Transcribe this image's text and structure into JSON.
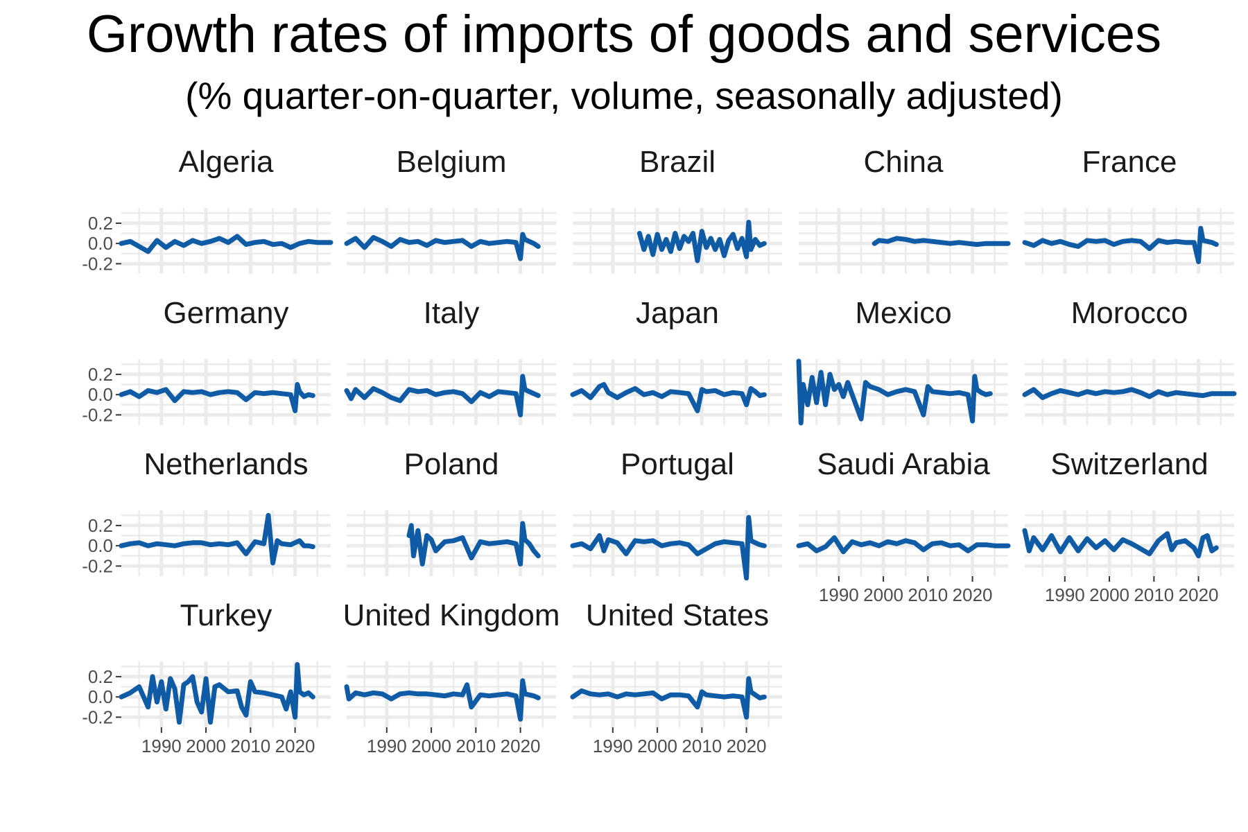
{
  "title": "Growth rates of imports of goods and services",
  "subtitle": "(% quarter-on-quarter, volume, seasonally adjusted)",
  "chart_data": {
    "type": "line",
    "layout": "facet_wrap",
    "ncol": 5,
    "line_color": "#0f5ba6",
    "grid": true,
    "background": "#ffffff",
    "grid_color": "#ebebeb",
    "xlim": [
      1981,
      2028
    ],
    "x_ticks": [
      1990,
      2000,
      2010,
      2020
    ],
    "x_tick_labels": [
      "1990",
      "2000",
      "2010",
      "2020"
    ],
    "ylim": [
      -0.3,
      0.35
    ],
    "y_ticks": [
      0.2,
      0.0,
      -0.2
    ],
    "y_tick_labels": [
      "0.2",
      "0.0",
      "-0.2"
    ],
    "xlabel": "",
    "ylabel": "",
    "panels": [
      {
        "name": "Algeria",
        "x": [
          1981,
          1983,
          1985,
          1987,
          1989,
          1991,
          1993,
          1995,
          1997,
          1999,
          2001,
          2003,
          2005,
          2007,
          2009,
          2011,
          2013,
          2015,
          2017,
          2019,
          2021,
          2023,
          2025,
          2028
        ],
        "y": [
          0.0,
          0.02,
          -0.03,
          -0.08,
          0.03,
          -0.04,
          0.02,
          -0.02,
          0.03,
          0.0,
          0.02,
          0.05,
          0.01,
          0.07,
          -0.01,
          0.01,
          0.02,
          -0.01,
          0.0,
          -0.04,
          0.0,
          0.02,
          0.01,
          0.01
        ]
      },
      {
        "name": "Belgium",
        "x": [
          1981,
          1983,
          1985,
          1987,
          1989,
          1991,
          1993,
          1995,
          1997,
          1999,
          2001,
          2003,
          2005,
          2007,
          2009,
          2011,
          2013,
          2015,
          2017,
          2019,
          2020,
          2020.5,
          2021,
          2022,
          2023,
          2024
        ],
        "y": [
          0.0,
          0.05,
          -0.04,
          0.06,
          0.02,
          -0.03,
          0.04,
          0.01,
          0.02,
          -0.02,
          0.03,
          0.01,
          0.02,
          0.03,
          -0.03,
          0.02,
          0.0,
          0.01,
          0.02,
          0.01,
          -0.15,
          0.09,
          0.04,
          0.02,
          0.0,
          -0.03
        ]
      },
      {
        "name": "Brazil",
        "x": [
          1996,
          1997,
          1998,
          1999,
          2000,
          2001,
          2002,
          2003,
          2004,
          2005,
          2006,
          2007,
          2008,
          2009,
          2010,
          2011,
          2012,
          2013,
          2014,
          2015,
          2016,
          2017,
          2018,
          2019,
          2020,
          2020.5,
          2021,
          2022,
          2023,
          2024
        ],
        "y": [
          0.1,
          -0.06,
          0.07,
          -0.11,
          0.09,
          -0.06,
          0.04,
          -0.08,
          0.1,
          -0.05,
          0.07,
          0.02,
          0.1,
          -0.17,
          0.12,
          -0.04,
          0.05,
          -0.06,
          0.04,
          -0.12,
          0.03,
          0.09,
          -0.05,
          0.05,
          -0.13,
          0.21,
          -0.06,
          0.04,
          -0.02,
          0.0
        ]
      },
      {
        "name": "China",
        "x": [
          1998,
          1999,
          2001,
          2003,
          2005,
          2007,
          2009,
          2011,
          2013,
          2015,
          2017,
          2019,
          2021,
          2023,
          2025,
          2028
        ],
        "y": [
          0.0,
          0.03,
          0.02,
          0.05,
          0.04,
          0.02,
          0.03,
          0.02,
          0.01,
          0.0,
          0.01,
          0.0,
          -0.01,
          0.0,
          0.0,
          0.0
        ]
      },
      {
        "name": "France",
        "x": [
          1981,
          1983,
          1985,
          1987,
          1989,
          1991,
          1993,
          1995,
          1997,
          1999,
          2001,
          2003,
          2005,
          2007,
          2009,
          2011,
          2013,
          2015,
          2017,
          2019,
          2020,
          2020.5,
          2021,
          2022,
          2023,
          2024
        ],
        "y": [
          0.01,
          -0.02,
          0.03,
          0.0,
          0.02,
          -0.01,
          -0.03,
          0.03,
          0.02,
          0.03,
          -0.01,
          0.02,
          0.03,
          0.02,
          -0.05,
          0.03,
          0.01,
          0.02,
          0.01,
          0.01,
          -0.18,
          0.15,
          0.03,
          0.02,
          0.01,
          -0.01
        ]
      },
      {
        "name": "Germany",
        "x": [
          1981,
          1983,
          1985,
          1987,
          1989,
          1991,
          1993,
          1995,
          1997,
          1999,
          2001,
          2003,
          2005,
          2007,
          2009,
          2011,
          2013,
          2015,
          2017,
          2019,
          2020,
          2020.5,
          2021,
          2022,
          2023,
          2024
        ],
        "y": [
          0.0,
          0.03,
          -0.02,
          0.04,
          0.02,
          0.05,
          -0.06,
          0.03,
          0.02,
          0.03,
          0.0,
          0.02,
          0.03,
          0.02,
          -0.05,
          0.02,
          0.01,
          0.02,
          0.01,
          0.0,
          -0.16,
          0.1,
          0.03,
          -0.02,
          0.0,
          -0.01
        ]
      },
      {
        "name": "Italy",
        "x": [
          1981,
          1982,
          1983,
          1985,
          1987,
          1989,
          1991,
          1993,
          1995,
          1997,
          1999,
          2001,
          2003,
          2005,
          2007,
          2009,
          2011,
          2013,
          2015,
          2017,
          2019,
          2020,
          2020.5,
          2021,
          2022,
          2023,
          2024
        ],
        "y": [
          0.04,
          -0.04,
          0.05,
          -0.03,
          0.06,
          0.02,
          -0.03,
          -0.06,
          0.05,
          0.03,
          0.04,
          0.0,
          0.02,
          0.03,
          0.01,
          -0.07,
          0.02,
          -0.02,
          0.03,
          0.02,
          0.01,
          -0.2,
          0.18,
          0.05,
          0.03,
          0.01,
          -0.01
        ]
      },
      {
        "name": "Japan",
        "x": [
          1981,
          1983,
          1985,
          1987,
          1988,
          1989,
          1991,
          1993,
          1995,
          1997,
          1999,
          2001,
          2003,
          2005,
          2007,
          2009,
          2010,
          2011,
          2013,
          2015,
          2017,
          2019,
          2020,
          2021,
          2022,
          2023,
          2024
        ],
        "y": [
          0.0,
          0.04,
          -0.03,
          0.08,
          0.1,
          0.02,
          -0.03,
          0.02,
          0.06,
          0.0,
          0.02,
          -0.02,
          0.03,
          0.02,
          0.01,
          -0.16,
          0.05,
          0.03,
          0.04,
          0.0,
          0.02,
          0.01,
          -0.1,
          0.06,
          0.03,
          -0.01,
          0.0
        ]
      },
      {
        "name": "Mexico",
        "x": [
          1981,
          1981.5,
          1982,
          1983,
          1984,
          1985,
          1986,
          1987,
          1988,
          1989,
          1990,
          1991,
          1992,
          1993,
          1995,
          1996,
          1997,
          1999,
          2001,
          2003,
          2005,
          2007,
          2009,
          2010,
          2011,
          2013,
          2015,
          2017,
          2019,
          2020,
          2020.5,
          2021,
          2022,
          2023,
          2024
        ],
        "y": [
          0.33,
          -0.28,
          0.1,
          -0.1,
          0.17,
          -0.08,
          0.22,
          -0.1,
          0.2,
          0.05,
          0.1,
          -0.02,
          0.12,
          0.0,
          -0.24,
          0.12,
          0.08,
          0.05,
          0.0,
          0.03,
          0.05,
          0.03,
          -0.2,
          0.08,
          0.03,
          0.02,
          0.01,
          0.02,
          0.0,
          -0.26,
          0.18,
          0.05,
          0.02,
          0.0,
          0.01
        ]
      },
      {
        "name": "Morocco",
        "x": [
          1981,
          1983,
          1985,
          1987,
          1989,
          1991,
          1993,
          1995,
          1997,
          1999,
          2001,
          2003,
          2005,
          2007,
          2009,
          2011,
          2013,
          2015,
          2017,
          2019,
          2021,
          2023,
          2025,
          2028
        ],
        "y": [
          0.0,
          0.05,
          -0.03,
          0.01,
          0.04,
          0.02,
          0.0,
          0.03,
          0.01,
          0.03,
          0.02,
          0.03,
          0.05,
          0.02,
          -0.02,
          0.03,
          0.0,
          0.02,
          0.01,
          0.0,
          -0.01,
          0.01,
          0.01,
          0.01
        ]
      },
      {
        "name": "Netherlands",
        "x": [
          1981,
          1983,
          1985,
          1987,
          1989,
          1991,
          1993,
          1995,
          1997,
          1999,
          2001,
          2003,
          2005,
          2007,
          2009,
          2011,
          2013,
          2014,
          2015,
          2016,
          2017,
          2019,
          2021,
          2022,
          2023,
          2024
        ],
        "y": [
          0.0,
          0.02,
          0.03,
          0.0,
          0.02,
          0.01,
          0.0,
          0.02,
          0.03,
          0.03,
          0.01,
          0.02,
          0.01,
          0.03,
          -0.08,
          0.04,
          0.02,
          0.3,
          -0.17,
          0.05,
          0.02,
          0.01,
          0.05,
          0.0,
          0.0,
          -0.01
        ]
      },
      {
        "name": "Poland",
        "x": [
          1995,
          1995.5,
          1996,
          1997,
          1998,
          1999,
          2000,
          2001,
          2003,
          2005,
          2007,
          2009,
          2011,
          2013,
          2015,
          2017,
          2019,
          2020,
          2020.5,
          2021,
          2022,
          2023,
          2024
        ],
        "y": [
          0.1,
          0.2,
          -0.1,
          0.15,
          -0.18,
          0.1,
          0.06,
          -0.05,
          0.04,
          0.05,
          0.08,
          -0.12,
          0.04,
          0.02,
          0.03,
          0.04,
          0.02,
          -0.18,
          0.22,
          0.06,
          0.02,
          -0.05,
          -0.1
        ]
      },
      {
        "name": "Portugal",
        "x": [
          1981,
          1983,
          1985,
          1987,
          1988,
          1989,
          1991,
          1993,
          1995,
          1997,
          1999,
          2001,
          2003,
          2005,
          2007,
          2009,
          2011,
          2013,
          2015,
          2017,
          2019,
          2020,
          2020.5,
          2021,
          2022,
          2023,
          2024
        ],
        "y": [
          0.0,
          0.02,
          -0.03,
          0.1,
          -0.05,
          0.06,
          0.03,
          -0.08,
          0.05,
          0.04,
          0.05,
          0.0,
          0.02,
          0.03,
          0.01,
          -0.08,
          -0.03,
          0.02,
          0.04,
          0.03,
          0.02,
          -0.32,
          0.28,
          0.05,
          0.03,
          0.01,
          0.0
        ]
      },
      {
        "name": "Saudi Arabia",
        "x": [
          1981,
          1983,
          1985,
          1987,
          1989,
          1991,
          1993,
          1995,
          1997,
          1999,
          2001,
          2003,
          2005,
          2007,
          2009,
          2011,
          2013,
          2015,
          2017,
          2019,
          2021,
          2023,
          2025,
          2028
        ],
        "y": [
          0.0,
          0.02,
          -0.05,
          -0.01,
          0.08,
          -0.06,
          0.04,
          0.01,
          0.03,
          0.0,
          0.04,
          0.02,
          0.05,
          0.03,
          -0.04,
          0.02,
          0.03,
          0.0,
          0.01,
          -0.05,
          0.01,
          0.01,
          0.0,
          0.0
        ]
      },
      {
        "name": "Switzerland",
        "x": [
          1981,
          1982,
          1983,
          1985,
          1987,
          1989,
          1991,
          1993,
          1995,
          1997,
          1999,
          2001,
          2003,
          2005,
          2007,
          2009,
          2011,
          2013,
          2014,
          2015,
          2017,
          2019,
          2020,
          2021,
          2022,
          2023,
          2024
        ],
        "y": [
          0.15,
          -0.05,
          0.08,
          -0.04,
          0.1,
          -0.06,
          0.08,
          -0.05,
          0.07,
          -0.02,
          0.05,
          -0.04,
          0.06,
          0.02,
          -0.03,
          -0.08,
          0.05,
          0.12,
          -0.04,
          0.03,
          0.05,
          -0.02,
          -0.1,
          0.08,
          0.1,
          -0.05,
          -0.02
        ]
      },
      {
        "name": "Turkey",
        "x": [
          1981,
          1983,
          1985,
          1987,
          1988,
          1989,
          1990,
          1991,
          1992,
          1993,
          1994,
          1995,
          1996,
          1997,
          1998,
          1999,
          2000,
          2001,
          2002,
          2003,
          2005,
          2007,
          2008,
          2009,
          2010,
          2011,
          2013,
          2015,
          2017,
          2018,
          2019,
          2020,
          2020.5,
          2021,
          2022,
          2023,
          2024
        ],
        "y": [
          0.0,
          0.04,
          0.1,
          -0.1,
          0.2,
          -0.05,
          0.15,
          -0.12,
          0.18,
          0.08,
          -0.25,
          0.12,
          0.15,
          0.2,
          -0.05,
          -0.15,
          0.18,
          -0.25,
          0.1,
          0.12,
          0.05,
          0.06,
          -0.1,
          -0.18,
          0.15,
          0.05,
          0.04,
          0.02,
          0.0,
          -0.12,
          0.05,
          -0.2,
          0.32,
          0.05,
          0.02,
          0.04,
          0.0
        ]
      },
      {
        "name": "United Kingdom",
        "x": [
          1981,
          1981.5,
          1983,
          1985,
          1987,
          1989,
          1991,
          1993,
          1995,
          1997,
          1999,
          2001,
          2003,
          2005,
          2007,
          2008,
          2009,
          2011,
          2013,
          2015,
          2017,
          2019,
          2020,
          2020.5,
          2021,
          2022,
          2023,
          2024
        ],
        "y": [
          0.1,
          -0.02,
          0.04,
          0.02,
          0.04,
          0.03,
          -0.02,
          0.03,
          0.04,
          0.03,
          0.03,
          0.02,
          0.01,
          0.03,
          0.02,
          0.12,
          -0.1,
          0.02,
          0.01,
          0.02,
          0.03,
          0.01,
          -0.22,
          0.16,
          0.03,
          0.02,
          0.01,
          -0.01
        ]
      },
      {
        "name": "United States",
        "x": [
          1981,
          1983,
          1985,
          1987,
          1989,
          1991,
          1993,
          1995,
          1997,
          1999,
          2001,
          2003,
          2005,
          2007,
          2009,
          2010,
          2011,
          2013,
          2015,
          2017,
          2019,
          2020,
          2020.5,
          2021,
          2022,
          2023,
          2024
        ],
        "y": [
          0.0,
          0.06,
          0.03,
          0.02,
          0.03,
          0.0,
          0.03,
          0.02,
          0.03,
          0.04,
          -0.02,
          0.02,
          0.02,
          0.01,
          -0.1,
          0.05,
          0.02,
          0.01,
          0.0,
          0.01,
          0.0,
          -0.2,
          0.18,
          0.05,
          0.02,
          -0.01,
          0.0
        ]
      }
    ]
  }
}
